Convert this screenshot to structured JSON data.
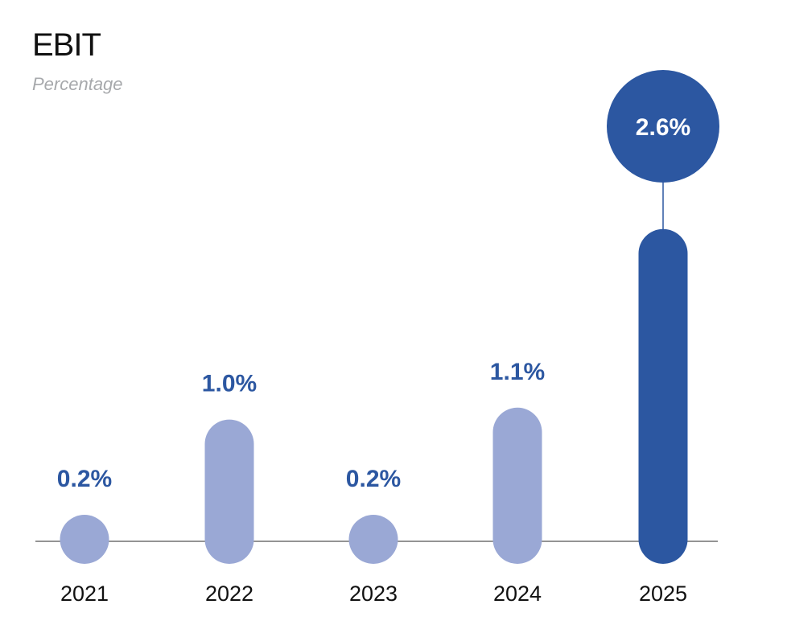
{
  "title": "EBIT",
  "subtitle": "Percentage",
  "colors": {
    "normal": "#9aa8d5",
    "highlight": "#2c57a1",
    "label": "#2c57a1",
    "baseline": "#555555"
  },
  "chart_data": {
    "type": "bar",
    "title": "EBIT",
    "subtitle": "Percentage",
    "categories": [
      "2021",
      "2022",
      "2023",
      "2024",
      "2025"
    ],
    "values": [
      0.2,
      1.0,
      0.2,
      1.1,
      2.6
    ],
    "value_labels": [
      "0.2%",
      "1.0%",
      "0.2%",
      "1.1%",
      "2.6%"
    ],
    "highlight": "2025",
    "xlabel": "",
    "ylabel": "",
    "grid": false,
    "legend": "none"
  }
}
